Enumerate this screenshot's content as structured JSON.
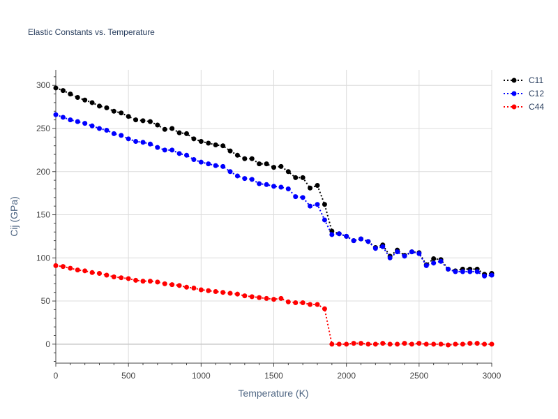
{
  "chart_data": {
    "type": "line",
    "title": "Elastic Constants vs. Temperature",
    "xlabel": "Temperature (K)",
    "ylabel": "Cij (GPa)",
    "xlim": [
      0,
      3000
    ],
    "ylim": [
      -22,
      318
    ],
    "x_ticks": [
      0,
      500,
      1000,
      1500,
      2000,
      2500,
      3000
    ],
    "y_ticks": [
      0,
      50,
      100,
      150,
      200,
      250,
      300
    ],
    "grid": true,
    "legend_position": "top-right",
    "series": [
      {
        "name": "C11",
        "color": "#000000",
        "x": [
          0,
          50,
          100,
          150,
          200,
          250,
          300,
          350,
          400,
          450,
          500,
          550,
          600,
          650,
          700,
          750,
          800,
          850,
          900,
          950,
          1000,
          1050,
          1100,
          1150,
          1200,
          1250,
          1300,
          1350,
          1400,
          1450,
          1500,
          1550,
          1600,
          1650,
          1700,
          1750,
          1800,
          1850,
          1900,
          1950,
          2000,
          2050,
          2100,
          2150,
          2200,
          2250,
          2300,
          2350,
          2400,
          2450,
          2500,
          2550,
          2600,
          2650,
          2700,
          2750,
          2800,
          2850,
          2900,
          2950,
          3000
        ],
        "y": [
          297,
          294,
          290,
          286,
          283,
          280,
          276,
          274,
          270,
          268,
          264,
          260,
          259,
          258,
          254,
          249,
          250,
          245,
          244,
          238,
          235,
          233,
          231,
          230,
          224,
          219,
          215,
          215,
          209,
          209,
          205,
          206,
          200,
          193,
          193,
          181,
          184,
          162,
          131,
          128,
          125,
          120,
          122,
          119,
          112,
          115,
          102,
          109,
          103,
          107,
          106,
          92,
          99,
          98,
          87,
          85,
          87,
          87,
          87,
          81,
          82
        ]
      },
      {
        "name": "C12",
        "color": "#0000ff",
        "x": [
          0,
          50,
          100,
          150,
          200,
          250,
          300,
          350,
          400,
          450,
          500,
          550,
          600,
          650,
          700,
          750,
          800,
          850,
          900,
          950,
          1000,
          1050,
          1100,
          1150,
          1200,
          1250,
          1300,
          1350,
          1400,
          1450,
          1500,
          1550,
          1600,
          1650,
          1700,
          1750,
          1800,
          1850,
          1900,
          1950,
          2000,
          2050,
          2100,
          2150,
          2200,
          2250,
          2300,
          2350,
          2400,
          2450,
          2500,
          2550,
          2600,
          2650,
          2700,
          2750,
          2800,
          2850,
          2900,
          2950,
          3000
        ],
        "y": [
          266,
          263,
          260,
          258,
          256,
          253,
          250,
          248,
          244,
          242,
          238,
          235,
          234,
          232,
          228,
          225,
          225,
          221,
          219,
          214,
          211,
          209,
          207,
          206,
          200,
          195,
          192,
          191,
          186,
          185,
          183,
          182,
          180,
          171,
          170,
          160,
          162,
          144,
          127,
          128,
          125,
          120,
          122,
          119,
          111,
          113,
          100,
          107,
          102,
          107,
          105,
          91,
          94,
          96,
          87,
          84,
          84,
          84,
          84,
          79,
          80
        ]
      },
      {
        "name": "C44",
        "color": "#ff0000",
        "x": [
          0,
          50,
          100,
          150,
          200,
          250,
          300,
          350,
          400,
          450,
          500,
          550,
          600,
          650,
          700,
          750,
          800,
          850,
          900,
          950,
          1000,
          1050,
          1100,
          1150,
          1200,
          1250,
          1300,
          1350,
          1400,
          1450,
          1500,
          1550,
          1600,
          1650,
          1700,
          1750,
          1800,
          1850,
          1900,
          1950,
          2000,
          2050,
          2100,
          2150,
          2200,
          2250,
          2300,
          2350,
          2400,
          2450,
          2500,
          2550,
          2600,
          2650,
          2700,
          2750,
          2800,
          2850,
          2900,
          2950,
          3000
        ],
        "y": [
          91,
          90,
          88,
          86,
          85,
          83,
          82,
          80,
          78,
          77,
          76,
          74,
          73,
          73,
          72,
          70,
          69,
          68,
          66,
          65,
          63,
          62,
          61,
          60,
          59,
          58,
          56,
          55,
          54,
          53,
          52,
          53,
          49,
          48,
          48,
          46,
          46,
          41,
          0,
          0,
          0,
          1,
          1,
          0,
          0,
          1,
          0,
          0,
          1,
          0,
          1,
          0,
          0,
          0,
          -1,
          0,
          0,
          1,
          1,
          0,
          0
        ]
      }
    ]
  }
}
